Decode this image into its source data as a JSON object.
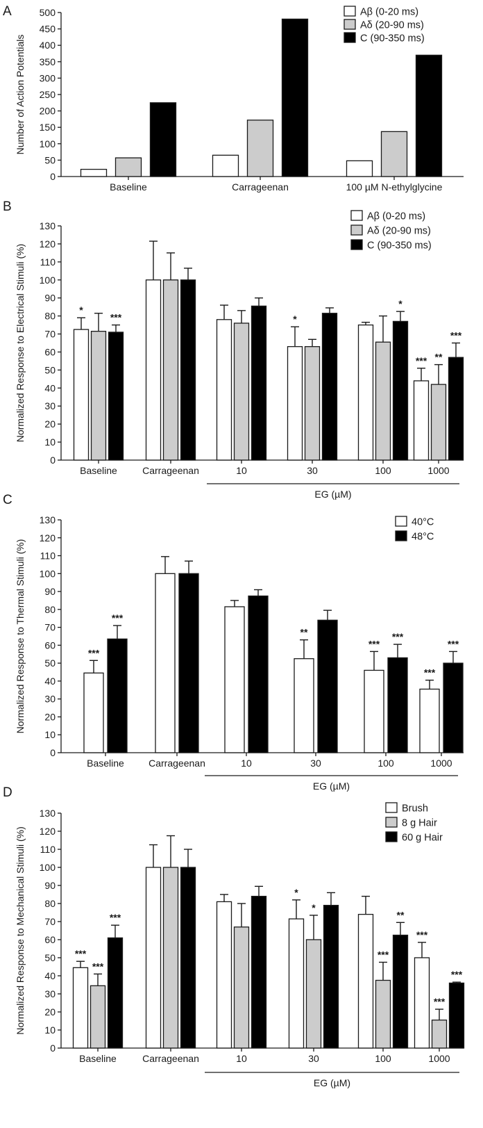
{
  "chart_data": [
    {
      "panel": "A",
      "type": "bar",
      "ylabel": "Number of Action Potentials",
      "ylim": [
        0,
        500
      ],
      "yticks": [
        0,
        50,
        100,
        150,
        200,
        250,
        300,
        350,
        400,
        450,
        500
      ],
      "categories": [
        "Baseline",
        "Carrageenan",
        "100 µM N-ethylglycine"
      ],
      "legend_position": "top-right",
      "series": [
        {
          "name": "Aβ (0-20 ms)",
          "fill": "#ffffff",
          "values": [
            22,
            65,
            48
          ]
        },
        {
          "name": "Aδ (20-90 ms)",
          "fill": "#cccccc",
          "values": [
            57,
            172,
            137
          ]
        },
        {
          "name": "C (90-350 ms)",
          "fill": "#000000",
          "values": [
            225,
            480,
            370
          ]
        }
      ]
    },
    {
      "panel": "B",
      "type": "bar",
      "ylabel": "Normalized Response to Electrical Stimuli (%)",
      "ylim": [
        0,
        130
      ],
      "yticks": [
        0,
        10,
        20,
        30,
        40,
        50,
        60,
        70,
        80,
        90,
        100,
        110,
        120,
        130
      ],
      "categories": [
        "Baseline",
        "Carrageenan",
        "10",
        "30",
        "100",
        "1000"
      ],
      "group_label": "EG (µM)",
      "legend_position": "top-right",
      "series": [
        {
          "name": "Aβ (0-20 ms)",
          "fill": "#ffffff",
          "values": [
            72.5,
            100,
            78,
            63,
            75,
            44
          ],
          "errors": [
            6.5,
            21.5,
            8,
            11,
            1.5,
            7
          ],
          "significance": [
            "*",
            "",
            "",
            "*",
            "",
            "***"
          ]
        },
        {
          "name": "Aδ (20-90 ms)",
          "fill": "#cccccc",
          "values": [
            71.5,
            100,
            76,
            63,
            65.5,
            42
          ],
          "errors": [
            10,
            15,
            7,
            4,
            14.5,
            11
          ],
          "significance": [
            "",
            "",
            "",
            "",
            "",
            "**"
          ]
        },
        {
          "name": "C (90-350 ms)",
          "fill": "#000000",
          "values": [
            71,
            100,
            85.5,
            81.5,
            77,
            57
          ],
          "errors": [
            4,
            6.5,
            4.5,
            3,
            5.5,
            8
          ],
          "significance": [
            "***",
            "",
            "",
            "",
            "*",
            "***"
          ]
        }
      ]
    },
    {
      "panel": "C",
      "type": "bar",
      "ylabel": "Normalized Response to Thermal Stimuli (%)",
      "ylim": [
        0,
        130
      ],
      "yticks": [
        0,
        10,
        20,
        30,
        40,
        50,
        60,
        70,
        80,
        90,
        100,
        110,
        120,
        130
      ],
      "categories": [
        "Baseline",
        "Carrageenan",
        "10",
        "30",
        "100",
        "1000"
      ],
      "group_label": "EG (µM)",
      "legend_position": "top-right",
      "series": [
        {
          "name": "40°C",
          "fill": "#ffffff",
          "values": [
            44.5,
            100,
            81.5,
            52.5,
            46,
            35.5
          ],
          "errors": [
            7,
            9.5,
            3.5,
            10.5,
            10.5,
            5
          ],
          "significance": [
            "***",
            "",
            "",
            "**",
            "***",
            "***"
          ]
        },
        {
          "name": "48°C",
          "fill": "#000000",
          "values": [
            63.5,
            100,
            87.5,
            74,
            53,
            50
          ],
          "errors": [
            7.5,
            7,
            3.5,
            5.5,
            7.5,
            6.5
          ],
          "significance": [
            "***",
            "",
            "",
            "",
            "***",
            "***"
          ]
        }
      ]
    },
    {
      "panel": "D",
      "type": "bar",
      "ylabel": "Normalized Response to Mechanical Stimuli (%)",
      "ylim": [
        0,
        130
      ],
      "yticks": [
        0,
        10,
        20,
        30,
        40,
        50,
        60,
        70,
        80,
        90,
        100,
        110,
        120,
        130
      ],
      "categories": [
        "Baseline",
        "Carrageenan",
        "10",
        "30",
        "100",
        "1000"
      ],
      "group_label": "EG (µM)",
      "legend_position": "top-right",
      "series": [
        {
          "name": "Brush",
          "fill": "#ffffff",
          "values": [
            44.5,
            100,
            81,
            71.5,
            74,
            50
          ],
          "errors": [
            3.5,
            12.5,
            4,
            10.5,
            10,
            8.5
          ],
          "significance": [
            "***",
            "",
            "",
            "*",
            "",
            "***"
          ]
        },
        {
          "name": "8 g Hair",
          "fill": "#cccccc",
          "values": [
            34.5,
            100,
            67,
            60,
            37.5,
            15.5
          ],
          "errors": [
            6.5,
            17.5,
            13,
            13.5,
            10,
            6
          ],
          "significance": [
            "***",
            "",
            "",
            "*",
            "***",
            "***"
          ]
        },
        {
          "name": "60 g Hair",
          "fill": "#000000",
          "values": [
            61,
            100,
            84,
            79,
            62.5,
            36
          ],
          "errors": [
            7,
            10,
            5.5,
            7,
            7,
            0.5
          ],
          "significance": [
            "***",
            "",
            "",
            "",
            "**",
            "***"
          ]
        }
      ]
    }
  ]
}
